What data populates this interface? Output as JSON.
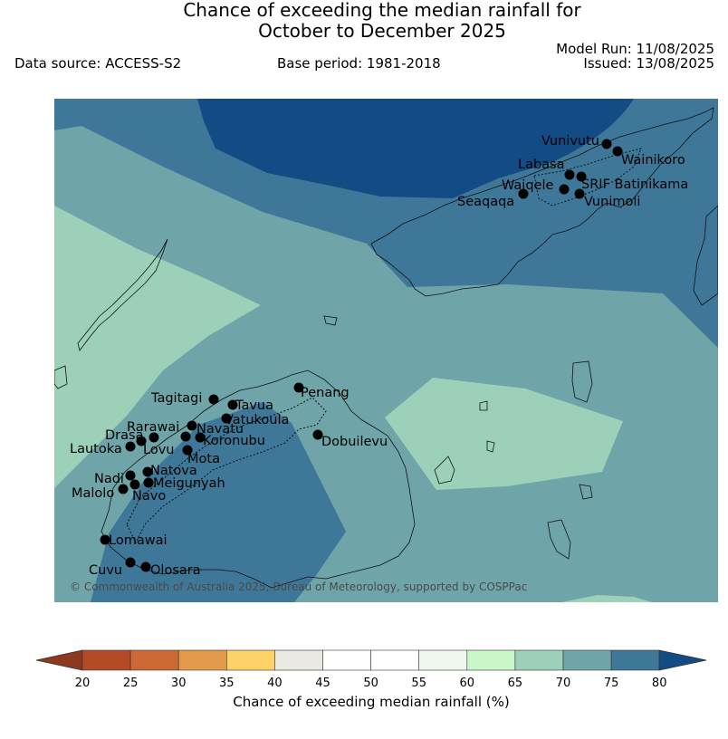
{
  "title": {
    "line1": "Chance of exceeding the median rainfall for",
    "line2": "October to December 2025"
  },
  "meta": {
    "data_source": "Data source: ACCESS-S2",
    "base_period": "Base period: 1981-2018",
    "model_run": "Model Run: 11/08/2025",
    "issued": "Issued: 13/08/2025"
  },
  "copyright": "© Commonwealth of Australia 2025, Bureau of Meteorology, supported by COSPPac",
  "colors": {
    "below_20": "#8e3820",
    "c20_25": "#b34b27",
    "c25_30": "#cd6934",
    "c30_35": "#e29a4c",
    "c35_40": "#fdd267",
    "c40_45": "#ece8e3",
    "c45_55": "#ffffff",
    "c55_60": "#eef6ed",
    "c60_65": "#caf8c9",
    "c65_70": "#9cd0b8",
    "c70_75": "#6fa5a8",
    "c75_80": "#3f7799",
    "above_80": "#134b85"
  },
  "colorbar": {
    "ticks": [
      "20",
      "25",
      "30",
      "35",
      "40",
      "45",
      "50",
      "55",
      "60",
      "65",
      "70",
      "75",
      "80"
    ],
    "label": "Chance of exceeding median rainfall (%)"
  },
  "stations": [
    {
      "name": "Vunivutu"
    },
    {
      "name": "Wainikoro"
    },
    {
      "name": "Labasa"
    },
    {
      "name": "Waiqele"
    },
    {
      "name": "SRIF Batinikama"
    },
    {
      "name": "Seaqaqa"
    },
    {
      "name": "Vunimoli"
    },
    {
      "name": "Penang"
    },
    {
      "name": "Tagitagi"
    },
    {
      "name": "Tavua"
    },
    {
      "name": "Vatukoula"
    },
    {
      "name": "Rarawai"
    },
    {
      "name": "Navatu"
    },
    {
      "name": "Drasa"
    },
    {
      "name": "Koronubu"
    },
    {
      "name": "Lautoka"
    },
    {
      "name": "Lovu"
    },
    {
      "name": "Dobuilevu"
    },
    {
      "name": "Mota"
    },
    {
      "name": "Natova"
    },
    {
      "name": "Nadi"
    },
    {
      "name": "Meigunyah"
    },
    {
      "name": "Malolo"
    },
    {
      "name": "Navo"
    },
    {
      "name": "Lomawai"
    },
    {
      "name": "Cuvu"
    },
    {
      "name": "Olosara"
    }
  ]
}
